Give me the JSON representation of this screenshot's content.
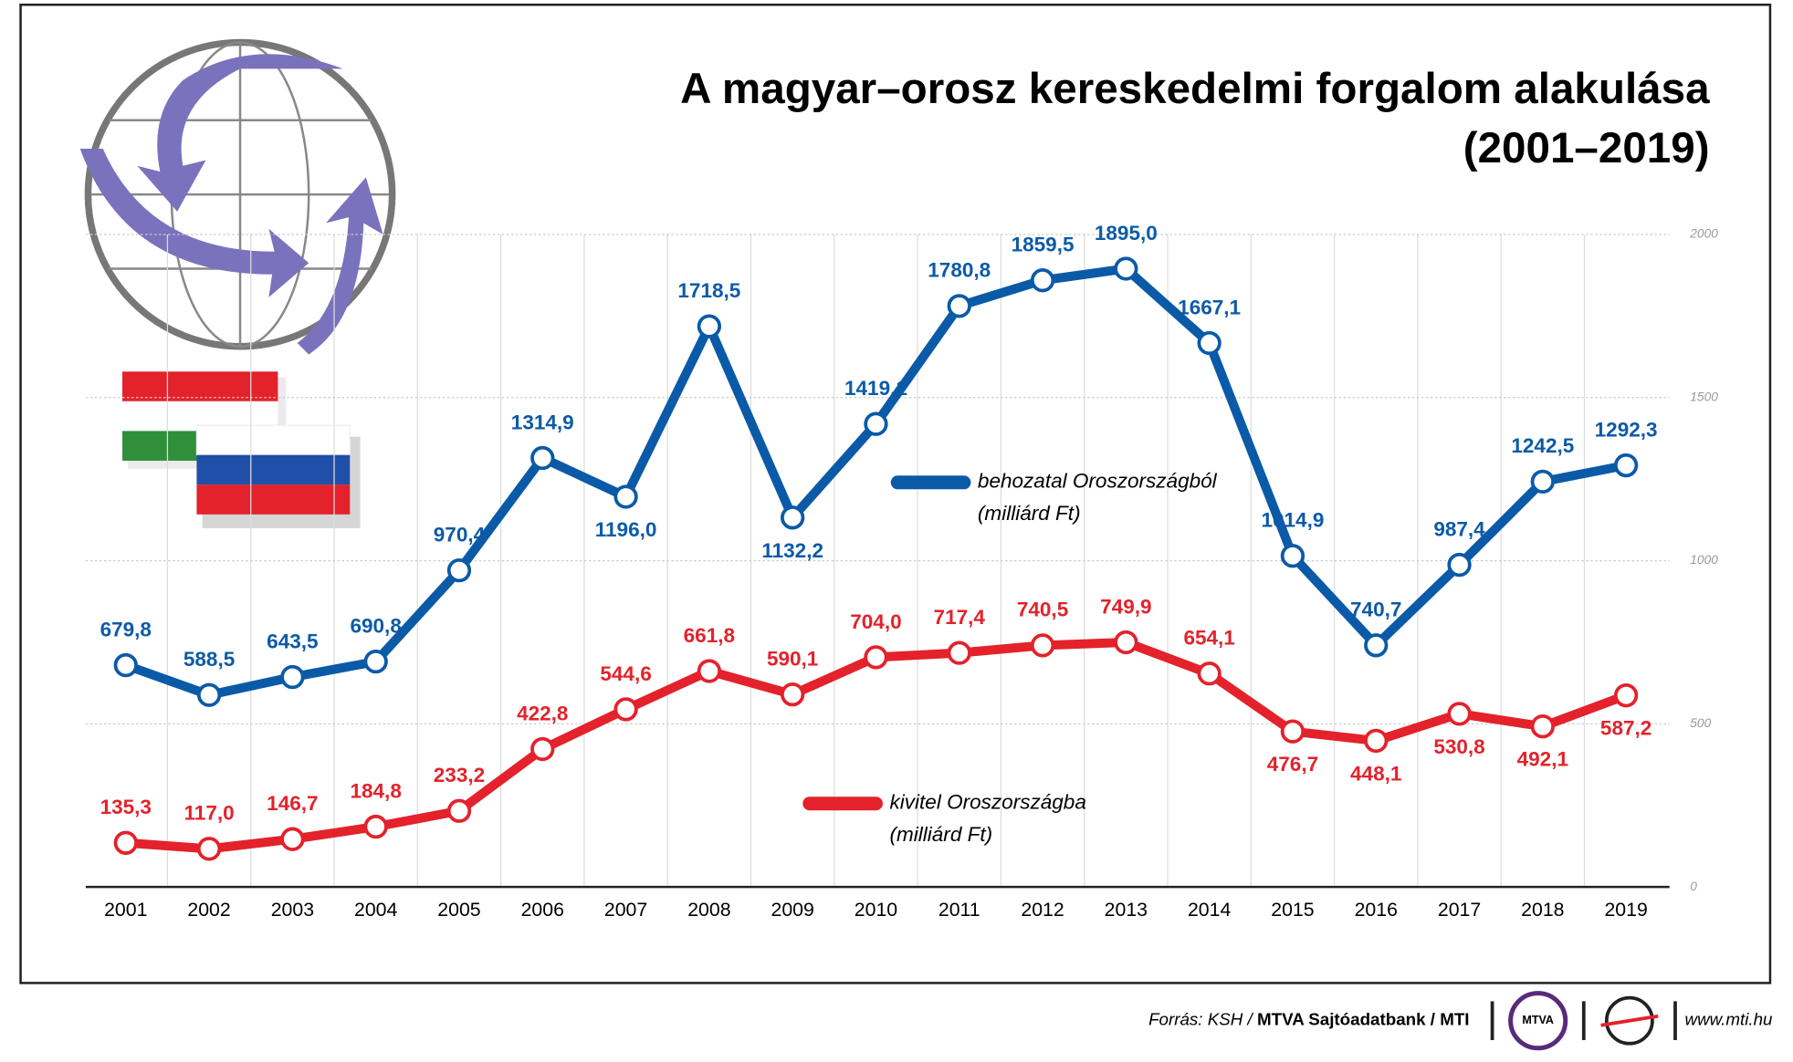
{
  "chart_data": {
    "type": "line",
    "title": "A magyar–orosz kereskedelmi forgalom alakulása",
    "subtitle": "(2001–2019)",
    "categories": [
      "2001",
      "2002",
      "2003",
      "2004",
      "2005",
      "2006",
      "2007",
      "2008",
      "2009",
      "2010",
      "2011",
      "2012",
      "2013",
      "2014",
      "2015",
      "2016",
      "2017",
      "2018",
      "2019"
    ],
    "series": [
      {
        "name": "behozatal Oroszországból",
        "unit": "(milliárd Ft)",
        "color": "#0b5aa8",
        "values": [
          679.8,
          588.5,
          643.5,
          690.8,
          970.4,
          1314.9,
          1196.0,
          1718.5,
          1132.2,
          1419.1,
          1780.8,
          1859.5,
          1895.0,
          1667.1,
          1014.9,
          740.7,
          987.4,
          1242.5,
          1292.3
        ],
        "value_labels": [
          "679,8",
          "588,5",
          "643,5",
          "690,8",
          "970,4",
          "1314,9",
          "1196,0",
          "1718,5",
          "1132,2",
          "1419,1",
          "1780,8",
          "1859,5",
          "1895,0",
          "1667,1",
          "1014,9",
          "740,7",
          "987,4",
          "1242,5",
          "1292,3"
        ]
      },
      {
        "name": "kivitel Oroszországba",
        "unit": "(milliárd Ft)",
        "color": "#e3222b",
        "values": [
          135.3,
          117.0,
          146.7,
          184.8,
          233.2,
          422.8,
          544.6,
          661.8,
          590.1,
          704.0,
          717.4,
          740.5,
          749.9,
          654.1,
          476.7,
          448.1,
          530.8,
          492.1,
          587.2
        ],
        "value_labels": [
          "135,3",
          "117,0",
          "146,7",
          "184,8",
          "233,2",
          "422,8",
          "544,6",
          "661,8",
          "590,1",
          "704,0",
          "717,4",
          "740,5",
          "749,9",
          "654,1",
          "476,7",
          "448,1",
          "530,8",
          "492,1",
          "587,2"
        ]
      }
    ],
    "ylim": [
      0,
      2000
    ],
    "yticks": [
      0,
      500,
      1000,
      1500,
      2000
    ],
    "grid": true
  },
  "footer": {
    "source_prefix": "Forrás: KSH /",
    "source_bold": "MTVA Sajtóadatbank",
    "source_end": "/ MTI",
    "logo": "MTVA",
    "url": "www.mti.hu"
  }
}
